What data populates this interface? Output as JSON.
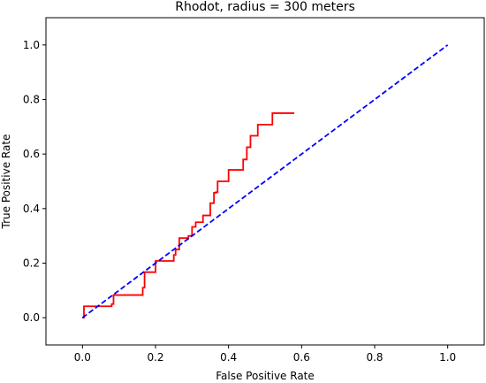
{
  "chart_data": {
    "type": "line",
    "title": "Rhodot, radius = 300 meters",
    "xlabel": "False Positive Rate",
    "ylabel": "True Positive Rate",
    "xlim": [
      -0.1,
      1.1
    ],
    "ylim": [
      -0.1,
      1.1
    ],
    "xticks": [
      0.0,
      0.2,
      0.4,
      0.6,
      0.8,
      1.0
    ],
    "yticks": [
      0.0,
      0.2,
      0.4,
      0.6,
      0.8,
      1.0
    ],
    "xtick_labels": [
      "0.0",
      "0.2",
      "0.4",
      "0.6",
      "0.8",
      "1.0"
    ],
    "ytick_labels": [
      "0.0",
      "0.2",
      "0.4",
      "0.6",
      "0.8",
      "1.0"
    ],
    "grid": false,
    "series": [
      {
        "color": "#ff0000",
        "style": "solid",
        "x": [
          0.0,
          0.004,
          0.004,
          0.08,
          0.08,
          0.085,
          0.085,
          0.165,
          0.165,
          0.17,
          0.17,
          0.2,
          0.2,
          0.25,
          0.25,
          0.255,
          0.255,
          0.265,
          0.265,
          0.29,
          0.29,
          0.3,
          0.3,
          0.31,
          0.31,
          0.33,
          0.33,
          0.35,
          0.35,
          0.36,
          0.36,
          0.365,
          0.365,
          0.37,
          0.37,
          0.4,
          0.4,
          0.44,
          0.44,
          0.45,
          0.45,
          0.46,
          0.46,
          0.48,
          0.48,
          0.52,
          0.52,
          0.555,
          0.555,
          0.58
        ],
        "y": [
          0.0,
          0.0,
          0.042,
          0.042,
          0.05,
          0.05,
          0.083,
          0.083,
          0.11,
          0.11,
          0.167,
          0.167,
          0.208,
          0.208,
          0.23,
          0.23,
          0.25,
          0.25,
          0.292,
          0.292,
          0.3,
          0.3,
          0.333,
          0.333,
          0.35,
          0.35,
          0.375,
          0.375,
          0.42,
          0.42,
          0.458,
          0.458,
          0.46,
          0.46,
          0.5,
          0.5,
          0.542,
          0.542,
          0.58,
          0.58,
          0.625,
          0.625,
          0.667,
          0.667,
          0.708,
          0.708,
          0.75,
          0.75,
          0.75,
          0.75
        ]
      },
      {
        "color": "#0000ff",
        "style": "dashed",
        "x": [
          0.0,
          1.0
        ],
        "y": [
          0.0,
          1.0
        ]
      }
    ]
  }
}
